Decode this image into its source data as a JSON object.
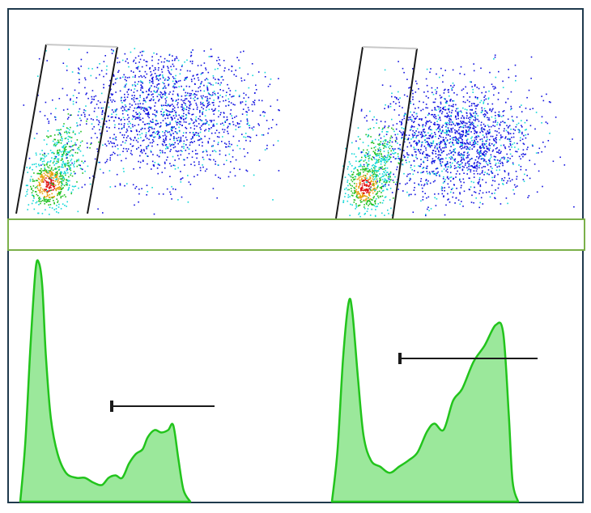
{
  "colors": {
    "frame": "#1f3a4d",
    "divider": "#7bb04a",
    "histogram_fill": "#9be89b",
    "histogram_stroke": "#22c41c",
    "gate": "#1a1a1a",
    "dot_low": "#1010e0",
    "dot_mid": "#10d8d8",
    "dot_high": "#20c020",
    "dot_peak": "#e01010"
  },
  "chart_data": [
    {
      "type": "scatter",
      "panel": "top-left",
      "grid": false,
      "density_colored": true,
      "gate": "polygon",
      "clusters": [
        {
          "population": "dense",
          "center": [
            0.12,
            0.18
          ],
          "spread": [
            0.04,
            0.08
          ],
          "count": 420
        },
        {
          "population": "dense-tail",
          "center": [
            0.18,
            0.35
          ],
          "spread": [
            0.04,
            0.1
          ],
          "count": 260
        },
        {
          "population": "diffuse",
          "center": [
            0.55,
            0.6
          ],
          "spread": [
            0.18,
            0.2
          ],
          "count": 1700
        }
      ]
    },
    {
      "type": "scatter",
      "panel": "top-right",
      "grid": false,
      "density_colored": true,
      "gate": "polygon",
      "clusters": [
        {
          "population": "dense",
          "center": [
            0.12,
            0.18
          ],
          "spread": [
            0.04,
            0.08
          ],
          "count": 420
        },
        {
          "population": "dense-tail",
          "center": [
            0.18,
            0.33
          ],
          "spread": [
            0.04,
            0.1
          ],
          "count": 260
        },
        {
          "population": "diffuse",
          "center": [
            0.5,
            0.45
          ],
          "spread": [
            0.15,
            0.17
          ],
          "count": 1700
        }
      ]
    },
    {
      "type": "area",
      "panel": "bottom-left",
      "x": [
        0,
        0.03,
        0.06,
        0.09,
        0.11,
        0.13,
        0.15,
        0.18,
        0.22,
        0.27,
        0.33,
        0.38,
        0.43,
        0.48,
        0.52,
        0.56,
        0.6,
        0.64,
        0.68,
        0.72,
        0.75,
        0.79,
        0.83,
        0.87,
        0.9,
        0.93,
        0.96,
        1.0
      ],
      "y": [
        0,
        0.25,
        0.65,
        0.97,
        1.0,
        0.9,
        0.62,
        0.35,
        0.2,
        0.12,
        0.1,
        0.1,
        0.08,
        0.07,
        0.1,
        0.11,
        0.1,
        0.16,
        0.2,
        0.22,
        0.27,
        0.3,
        0.29,
        0.3,
        0.32,
        0.18,
        0.05,
        0
      ],
      "gate_range": [
        0.52,
        1.0
      ]
    },
    {
      "type": "area",
      "panel": "bottom-right",
      "x": [
        0,
        0.03,
        0.06,
        0.09,
        0.11,
        0.14,
        0.17,
        0.21,
        0.26,
        0.31,
        0.36,
        0.41,
        0.46,
        0.51,
        0.55,
        0.6,
        0.65,
        0.7,
        0.76,
        0.82,
        0.88,
        0.92,
        0.95,
        0.97,
        1.0
      ],
      "y": [
        0,
        0.25,
        0.7,
        0.97,
        0.92,
        0.6,
        0.32,
        0.2,
        0.17,
        0.14,
        0.17,
        0.2,
        0.24,
        0.34,
        0.38,
        0.35,
        0.49,
        0.55,
        0.68,
        0.76,
        0.86,
        0.82,
        0.42,
        0.1,
        0
      ],
      "gate_range": [
        0.4,
        1.0
      ]
    }
  ]
}
